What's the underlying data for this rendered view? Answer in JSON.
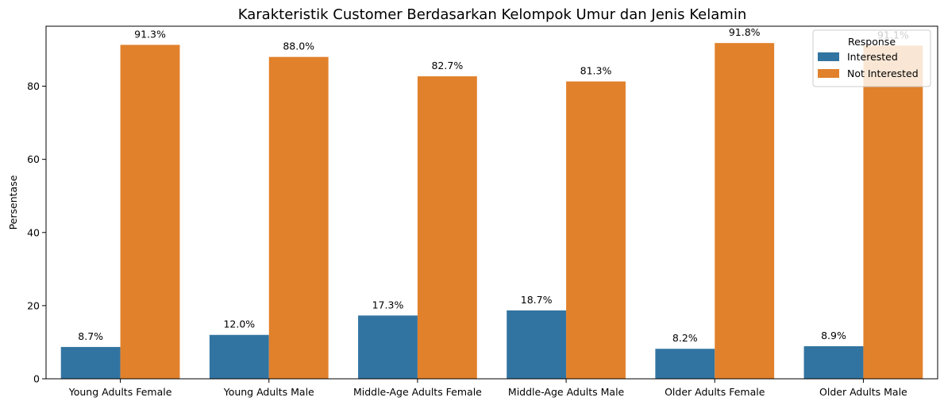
{
  "chart_data": {
    "type": "bar",
    "title": "Karakteristik Customer Berdasarkan Kelompok Umur dan Jenis Kelamin",
    "xlabel": "",
    "ylabel": "Persentase",
    "ylim": [
      0,
      96.4
    ],
    "yticks": [
      0,
      20,
      40,
      60,
      80
    ],
    "grid": false,
    "legend": {
      "title": "Response",
      "placement": "top-right"
    },
    "categories": [
      "Young Adults Female",
      "Young Adults Male",
      "Middle-Age Adults Female",
      "Middle-Age Adults Male",
      "Older Adults Female",
      "Older Adults Male"
    ],
    "series": [
      {
        "name": "Interested",
        "color": "#3274a1",
        "values": [
          8.7,
          12.0,
          17.3,
          18.7,
          8.2,
          8.9
        ],
        "labels": [
          "8.7%",
          "12.0%",
          "17.3%",
          "18.7%",
          "8.2%",
          "8.9%"
        ]
      },
      {
        "name": "Not Interested",
        "color": "#e1812c",
        "values": [
          91.3,
          88.0,
          82.7,
          81.3,
          91.8,
          91.1
        ],
        "labels": [
          "91.3%",
          "88.0%",
          "82.7%",
          "81.3%",
          "91.8%",
          "91.1%"
        ]
      }
    ]
  }
}
